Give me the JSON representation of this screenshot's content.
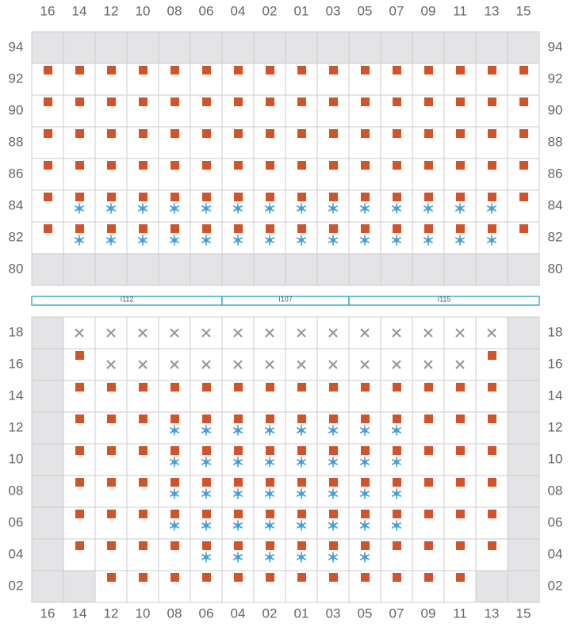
{
  "columns": [
    "16",
    "14",
    "12",
    "10",
    "08",
    "06",
    "04",
    "02",
    "01",
    "03",
    "05",
    "07",
    "09",
    "11",
    "13",
    "15"
  ],
  "top_section": {
    "rows": [
      {
        "label": "94",
        "cells": "gggggggggggggggg"
      },
      {
        "label": "92",
        "cells": "ssssssssssssssss"
      },
      {
        "label": "90",
        "cells": "ssssssssssssssss"
      },
      {
        "label": "88",
        "cells": "ssssssssssssssss"
      },
      {
        "label": "86",
        "cells": "ssssssssssssssss"
      },
      {
        "label": "84",
        "cells": "sbbbbbbbbbbbbbbs"
      },
      {
        "label": "82",
        "cells": "sbbbbbbbbbbbbbbs"
      },
      {
        "label": "80",
        "cells": "gggggggggggggggg"
      }
    ]
  },
  "zones": [
    {
      "label": "I112",
      "span": 6
    },
    {
      "label": "I107",
      "span": 4
    },
    {
      "label": "I115",
      "span": 6
    }
  ],
  "bottom_section": {
    "rows": [
      {
        "label": "18",
        "cells": "gxxxxxxxxxxxxxxg"
      },
      {
        "label": "16",
        "cells": "gsxxxxxxxxxxxxsg"
      },
      {
        "label": "14",
        "cells": "gssssssssssssssg"
      },
      {
        "label": "12",
        "cells": "gsssbbbbbbbbsssg"
      },
      {
        "label": "10",
        "cells": "gsssbbbbbbbbsssg"
      },
      {
        "label": "08",
        "cells": "gsssbbbbbbbbsssg"
      },
      {
        "label": "06",
        "cells": "gsssbbbbbbbbsssg"
      },
      {
        "label": "04",
        "cells": "gssssbbbbbbssssg"
      },
      {
        "label": "02",
        "cells": "ggssssssssssssgg"
      }
    ]
  }
}
